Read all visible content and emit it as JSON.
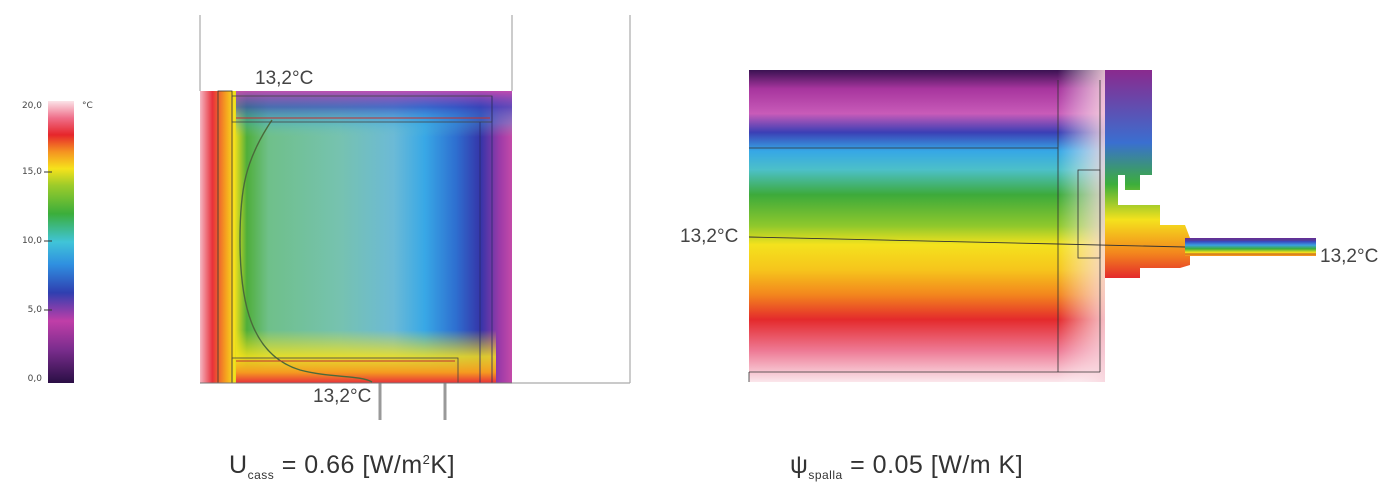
{
  "legend": {
    "unit": "°C",
    "ticks": [
      "20,0",
      "15,0",
      "10,0",
      "5,0",
      "0,0"
    ]
  },
  "isotherm_labels": {
    "left_top": "13,2°C",
    "left_bottom": "13,2°C",
    "right_left": "13,2°C",
    "right_right": "13,2°C"
  },
  "formulas": {
    "left": {
      "symbol": "U",
      "subscript": "cass",
      "equals": " = 0.66 [W/m",
      "power": "2",
      "unit_end": "K]"
    },
    "right": {
      "symbol": "ψ",
      "subscript": "spalla",
      "equals": " = 0.05 [W/m K]"
    }
  },
  "colors": {
    "cold": "#3a1a5a",
    "violet": "#b93aa6",
    "blue": "#2b59c8",
    "cyan": "#34b6e4",
    "green": "#4aae3a",
    "yellow": "#f5e020",
    "orange": "#f38a1c",
    "red": "#e8262a",
    "warm": "#f7d6dd"
  }
}
